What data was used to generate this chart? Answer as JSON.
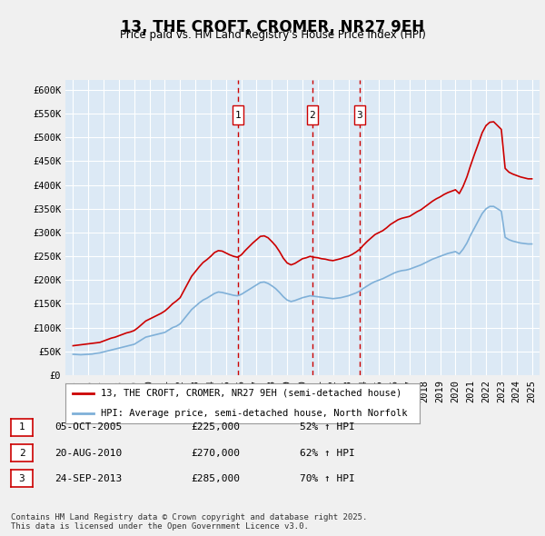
{
  "title": "13, THE CROFT, CROMER, NR27 9EH",
  "subtitle": "Price paid vs. HM Land Registry's House Price Index (HPI)",
  "ylabel_ticks": [
    "£0",
    "£50K",
    "£100K",
    "£150K",
    "£200K",
    "£250K",
    "£300K",
    "£350K",
    "£400K",
    "£450K",
    "£500K",
    "£550K",
    "£600K"
  ],
  "ytick_values": [
    0,
    50000,
    100000,
    150000,
    200000,
    250000,
    300000,
    350000,
    400000,
    450000,
    500000,
    550000,
    600000
  ],
  "xlim_start": 1994.5,
  "xlim_end": 2025.5,
  "ylim_min": 0,
  "ylim_max": 620000,
  "bg_color": "#dce9f5",
  "plot_bg_color": "#dce9f5",
  "grid_color": "#ffffff",
  "hpi_line_color": "#7fb0d8",
  "price_line_color": "#cc0000",
  "transaction_line_color": "#cc0000",
  "legend_label_price": "13, THE CROFT, CROMER, NR27 9EH (semi-detached house)",
  "legend_label_hpi": "HPI: Average price, semi-detached house, North Norfolk",
  "transactions": [
    {
      "num": 1,
      "date": "05-OCT-2005",
      "price": 225000,
      "hpi_pct": "52%",
      "x_year": 2005.77
    },
    {
      "num": 2,
      "date": "20-AUG-2010",
      "price": 270000,
      "hpi_pct": "62%",
      "x_year": 2010.64
    },
    {
      "num": 3,
      "date": "24-SEP-2013",
      "price": 285000,
      "hpi_pct": "70%",
      "x_year": 2013.73
    }
  ],
  "footer": "Contains HM Land Registry data © Crown copyright and database right 2025.\nThis data is licensed under the Open Government Licence v3.0.",
  "hpi_data_x": [
    1995.0,
    1995.25,
    1995.5,
    1995.75,
    1996.0,
    1996.25,
    1996.5,
    1996.75,
    1997.0,
    1997.25,
    1997.5,
    1997.75,
    1998.0,
    1998.25,
    1998.5,
    1998.75,
    1999.0,
    1999.25,
    1999.5,
    1999.75,
    2000.0,
    2000.25,
    2000.5,
    2000.75,
    2001.0,
    2001.25,
    2001.5,
    2001.75,
    2002.0,
    2002.25,
    2002.5,
    2002.75,
    2003.0,
    2003.25,
    2003.5,
    2003.75,
    2004.0,
    2004.25,
    2004.5,
    2004.75,
    2005.0,
    2005.25,
    2005.5,
    2005.75,
    2006.0,
    2006.25,
    2006.5,
    2006.75,
    2007.0,
    2007.25,
    2007.5,
    2007.75,
    2008.0,
    2008.25,
    2008.5,
    2008.75,
    2009.0,
    2009.25,
    2009.5,
    2009.75,
    2010.0,
    2010.25,
    2010.5,
    2010.75,
    2011.0,
    2011.25,
    2011.5,
    2011.75,
    2012.0,
    2012.25,
    2012.5,
    2012.75,
    2013.0,
    2013.25,
    2013.5,
    2013.75,
    2014.0,
    2014.25,
    2014.5,
    2014.75,
    2015.0,
    2015.25,
    2015.5,
    2015.75,
    2016.0,
    2016.25,
    2016.5,
    2016.75,
    2017.0,
    2017.25,
    2017.5,
    2017.75,
    2018.0,
    2018.25,
    2018.5,
    2018.75,
    2019.0,
    2019.25,
    2019.5,
    2019.75,
    2020.0,
    2020.25,
    2020.5,
    2020.75,
    2021.0,
    2021.25,
    2021.5,
    2021.75,
    2022.0,
    2022.25,
    2022.5,
    2022.75,
    2023.0,
    2023.25,
    2023.5,
    2023.75,
    2024.0,
    2024.25,
    2024.5,
    2024.75,
    2025.0
  ],
  "hpi_data_y": [
    44000,
    43500,
    43000,
    43500,
    44000,
    44500,
    46000,
    47000,
    49000,
    51000,
    53000,
    55000,
    57000,
    59000,
    61000,
    63000,
    65000,
    70000,
    75000,
    80000,
    82000,
    84000,
    86000,
    88000,
    90000,
    95000,
    100000,
    103000,
    108000,
    118000,
    128000,
    138000,
    145000,
    152000,
    158000,
    162000,
    167000,
    172000,
    175000,
    174000,
    172000,
    170000,
    168000,
    167000,
    170000,
    175000,
    180000,
    185000,
    190000,
    195000,
    196000,
    193000,
    188000,
    182000,
    174000,
    165000,
    158000,
    155000,
    157000,
    160000,
    163000,
    165000,
    167000,
    166000,
    165000,
    164000,
    163000,
    162000,
    161000,
    162000,
    163000,
    165000,
    167000,
    170000,
    173000,
    177000,
    183000,
    188000,
    193000,
    197000,
    200000,
    203000,
    207000,
    211000,
    215000,
    218000,
    220000,
    221000,
    223000,
    226000,
    229000,
    232000,
    236000,
    240000,
    244000,
    247000,
    250000,
    253000,
    256000,
    258000,
    260000,
    255000,
    265000,
    278000,
    295000,
    310000,
    325000,
    340000,
    350000,
    355000,
    355000,
    350000,
    345000,
    290000,
    285000,
    282000,
    280000,
    278000,
    277000,
    276000,
    276000
  ],
  "price_data_x": [
    1995.0,
    1995.25,
    1995.5,
    1995.75,
    1996.0,
    1996.25,
    1996.5,
    1996.75,
    1997.0,
    1997.25,
    1997.5,
    1997.75,
    1998.0,
    1998.25,
    1998.5,
    1998.75,
    1999.0,
    1999.25,
    1999.5,
    1999.75,
    2000.0,
    2000.25,
    2000.5,
    2000.75,
    2001.0,
    2001.25,
    2001.5,
    2001.75,
    2002.0,
    2002.25,
    2002.5,
    2002.75,
    2003.0,
    2003.25,
    2003.5,
    2003.75,
    2004.0,
    2004.25,
    2004.5,
    2004.75,
    2005.0,
    2005.25,
    2005.5,
    2005.75,
    2006.0,
    2006.25,
    2006.5,
    2006.75,
    2007.0,
    2007.25,
    2007.5,
    2007.75,
    2008.0,
    2008.25,
    2008.5,
    2008.75,
    2009.0,
    2009.25,
    2009.5,
    2009.75,
    2010.0,
    2010.25,
    2010.5,
    2010.75,
    2011.0,
    2011.25,
    2011.5,
    2011.75,
    2012.0,
    2012.25,
    2012.5,
    2012.75,
    2013.0,
    2013.25,
    2013.5,
    2013.75,
    2014.0,
    2014.25,
    2014.5,
    2014.75,
    2015.0,
    2015.25,
    2015.5,
    2015.75,
    2016.0,
    2016.25,
    2016.5,
    2016.75,
    2017.0,
    2017.25,
    2017.5,
    2017.75,
    2018.0,
    2018.25,
    2018.5,
    2018.75,
    2019.0,
    2019.25,
    2019.5,
    2019.75,
    2020.0,
    2020.25,
    2020.5,
    2020.75,
    2021.0,
    2021.25,
    2021.5,
    2021.75,
    2022.0,
    2022.25,
    2022.5,
    2022.75,
    2023.0,
    2023.25,
    2023.5,
    2023.75,
    2024.0,
    2024.25,
    2024.5,
    2024.75,
    2025.0
  ],
  "price_data_y": [
    62000,
    63000,
    64000,
    65000,
    66000,
    67000,
    68000,
    69000,
    72000,
    75000,
    78000,
    80000,
    83000,
    86000,
    89000,
    91000,
    94000,
    100000,
    107000,
    114000,
    118000,
    122000,
    126000,
    130000,
    135000,
    142000,
    150000,
    156000,
    163000,
    178000,
    193000,
    208000,
    218000,
    228000,
    237000,
    243000,
    250000,
    258000,
    262000,
    261000,
    257000,
    253000,
    250000,
    248000,
    253000,
    262000,
    270000,
    278000,
    285000,
    292000,
    293000,
    289000,
    281000,
    272000,
    260000,
    246000,
    236000,
    232000,
    235000,
    240000,
    245000,
    247000,
    250000,
    248000,
    247000,
    245000,
    244000,
    242000,
    241000,
    243000,
    245000,
    248000,
    250000,
    254000,
    259000,
    265000,
    274000,
    282000,
    289000,
    296000,
    300000,
    304000,
    310000,
    317000,
    322000,
    327000,
    330000,
    332000,
    334000,
    339000,
    344000,
    348000,
    354000,
    360000,
    366000,
    371000,
    375000,
    380000,
    384000,
    387000,
    390000,
    382000,
    397000,
    417000,
    442000,
    465000,
    487000,
    510000,
    525000,
    532000,
    533000,
    525000,
    517000,
    435000,
    427000,
    423000,
    420000,
    417000,
    415000,
    413000,
    413000
  ]
}
